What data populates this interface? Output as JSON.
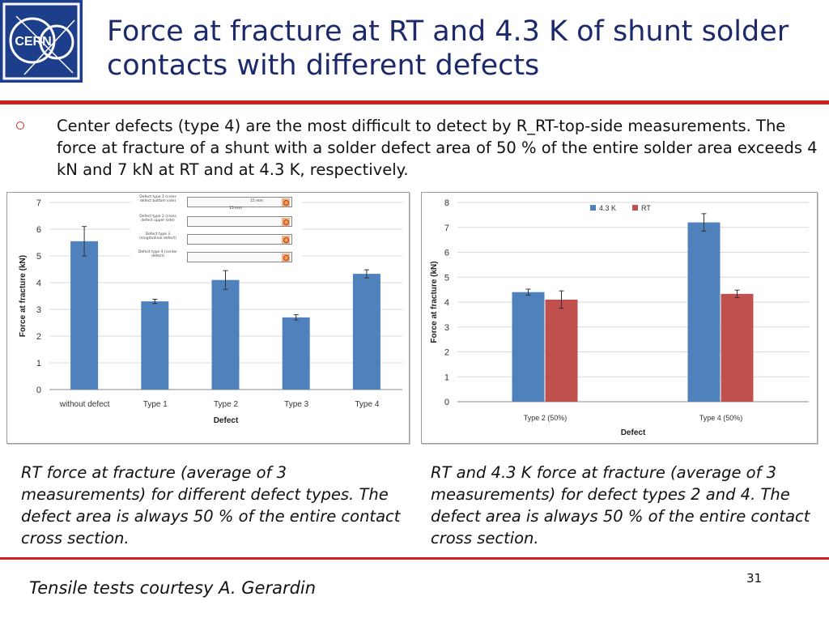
{
  "logo": {
    "text": "CERN"
  },
  "title": "Force at fracture at RT and 4.3 K of shunt solder contacts with different defects",
  "bullet": "Center defects (type 4) are the most difficult to detect by R_RT-top-side measurements. The force at fracture of a shunt with a solder defect area of 50 % of the entire solder area exceeds 4 kN and 7 kN at RT and at 4.3 K, respectively.",
  "inset": {
    "rows": [
      "Defect type 1 (cross defect bottom side)",
      "Defect type 2 (cross defect upper side)",
      "Defect type 3 (longitudinal defect)",
      "Defect type 4 (center defect)"
    ],
    "dim1": "15 mm",
    "dim2": "15 mm"
  },
  "colors": {
    "blue": "#4f81bd",
    "red": "#c0504d",
    "grid": "#d9d9d9",
    "accent_red": "#d02020"
  },
  "chart_data": [
    {
      "type": "bar",
      "categories": [
        "without defect",
        "Type 1",
        "Type 2",
        "Type 3",
        "Type 4"
      ],
      "series": [
        {
          "values": [
            5.55,
            3.3,
            4.1,
            2.7,
            4.33
          ],
          "errors": [
            0.55,
            0.08,
            0.35,
            0.1,
            0.15
          ],
          "color": "#4f81bd"
        }
      ],
      "xlabel": "Defect",
      "ylabel": "Force at fracture (kN)",
      "ylim": [
        0,
        7
      ],
      "yticks": [
        0,
        1,
        2,
        3,
        4,
        5,
        6,
        7
      ],
      "grid": true
    },
    {
      "type": "bar",
      "categories": [
        "Type 2 (50%)",
        "Type 4 (50%)"
      ],
      "series": [
        {
          "name": "4.3 K",
          "values": [
            4.4,
            7.2
          ],
          "errors": [
            0.12,
            0.35
          ],
          "color": "#4f81bd"
        },
        {
          "name": "RT",
          "values": [
            4.1,
            4.33
          ],
          "errors": [
            0.35,
            0.15
          ],
          "color": "#c0504d"
        }
      ],
      "xlabel": "Defect",
      "ylabel": "Force at fracture (kN)",
      "ylim": [
        0,
        8
      ],
      "yticks": [
        0,
        1,
        2,
        3,
        4,
        5,
        6,
        7,
        8
      ],
      "legend": "top-center",
      "grid": true
    }
  ],
  "captions": [
    "RT force at fracture (average of 3 measurements) for different defect types. The defect area is always 50 % of the entire contact cross section.",
    "RT and 4.3 K force at fracture (average of 3 measurements) for defect types 2 and 4. The defect area is always 50 % of the entire contact cross section."
  ],
  "footer": "Tensile tests courtesy A. Gerardin",
  "page_number": "31"
}
